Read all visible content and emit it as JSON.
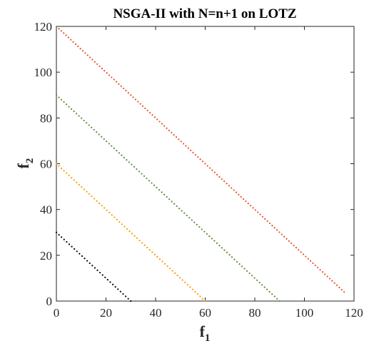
{
  "chart_data": {
    "type": "scatter",
    "title": "NSGA-II with N=n+1 on LOTZ",
    "xlabel": {
      "main": "f",
      "sub": "1"
    },
    "ylabel": {
      "main": "f",
      "sub": "2"
    },
    "xlim": [
      0,
      120
    ],
    "ylim": [
      0,
      120
    ],
    "xticks": [
      "0",
      "20",
      "40",
      "60",
      "80",
      "100",
      "120"
    ],
    "yticks": [
      "0",
      "20",
      "40",
      "60",
      "80",
      "100",
      "120"
    ],
    "grid": false,
    "series": [
      {
        "color": "#000000",
        "n": 30,
        "x_range": [
          0,
          30
        ],
        "total": 30
      },
      {
        "color": "#ff9900",
        "n": 60,
        "x_range": [
          0,
          60
        ],
        "total": 60
      },
      {
        "color": "#5a8a3c",
        "n": 90,
        "x_range": [
          0,
          90
        ],
        "total": 90
      },
      {
        "color": "#e8502a",
        "n": 120,
        "x_range": [
          1,
          116
        ],
        "total": 120
      }
    ]
  }
}
